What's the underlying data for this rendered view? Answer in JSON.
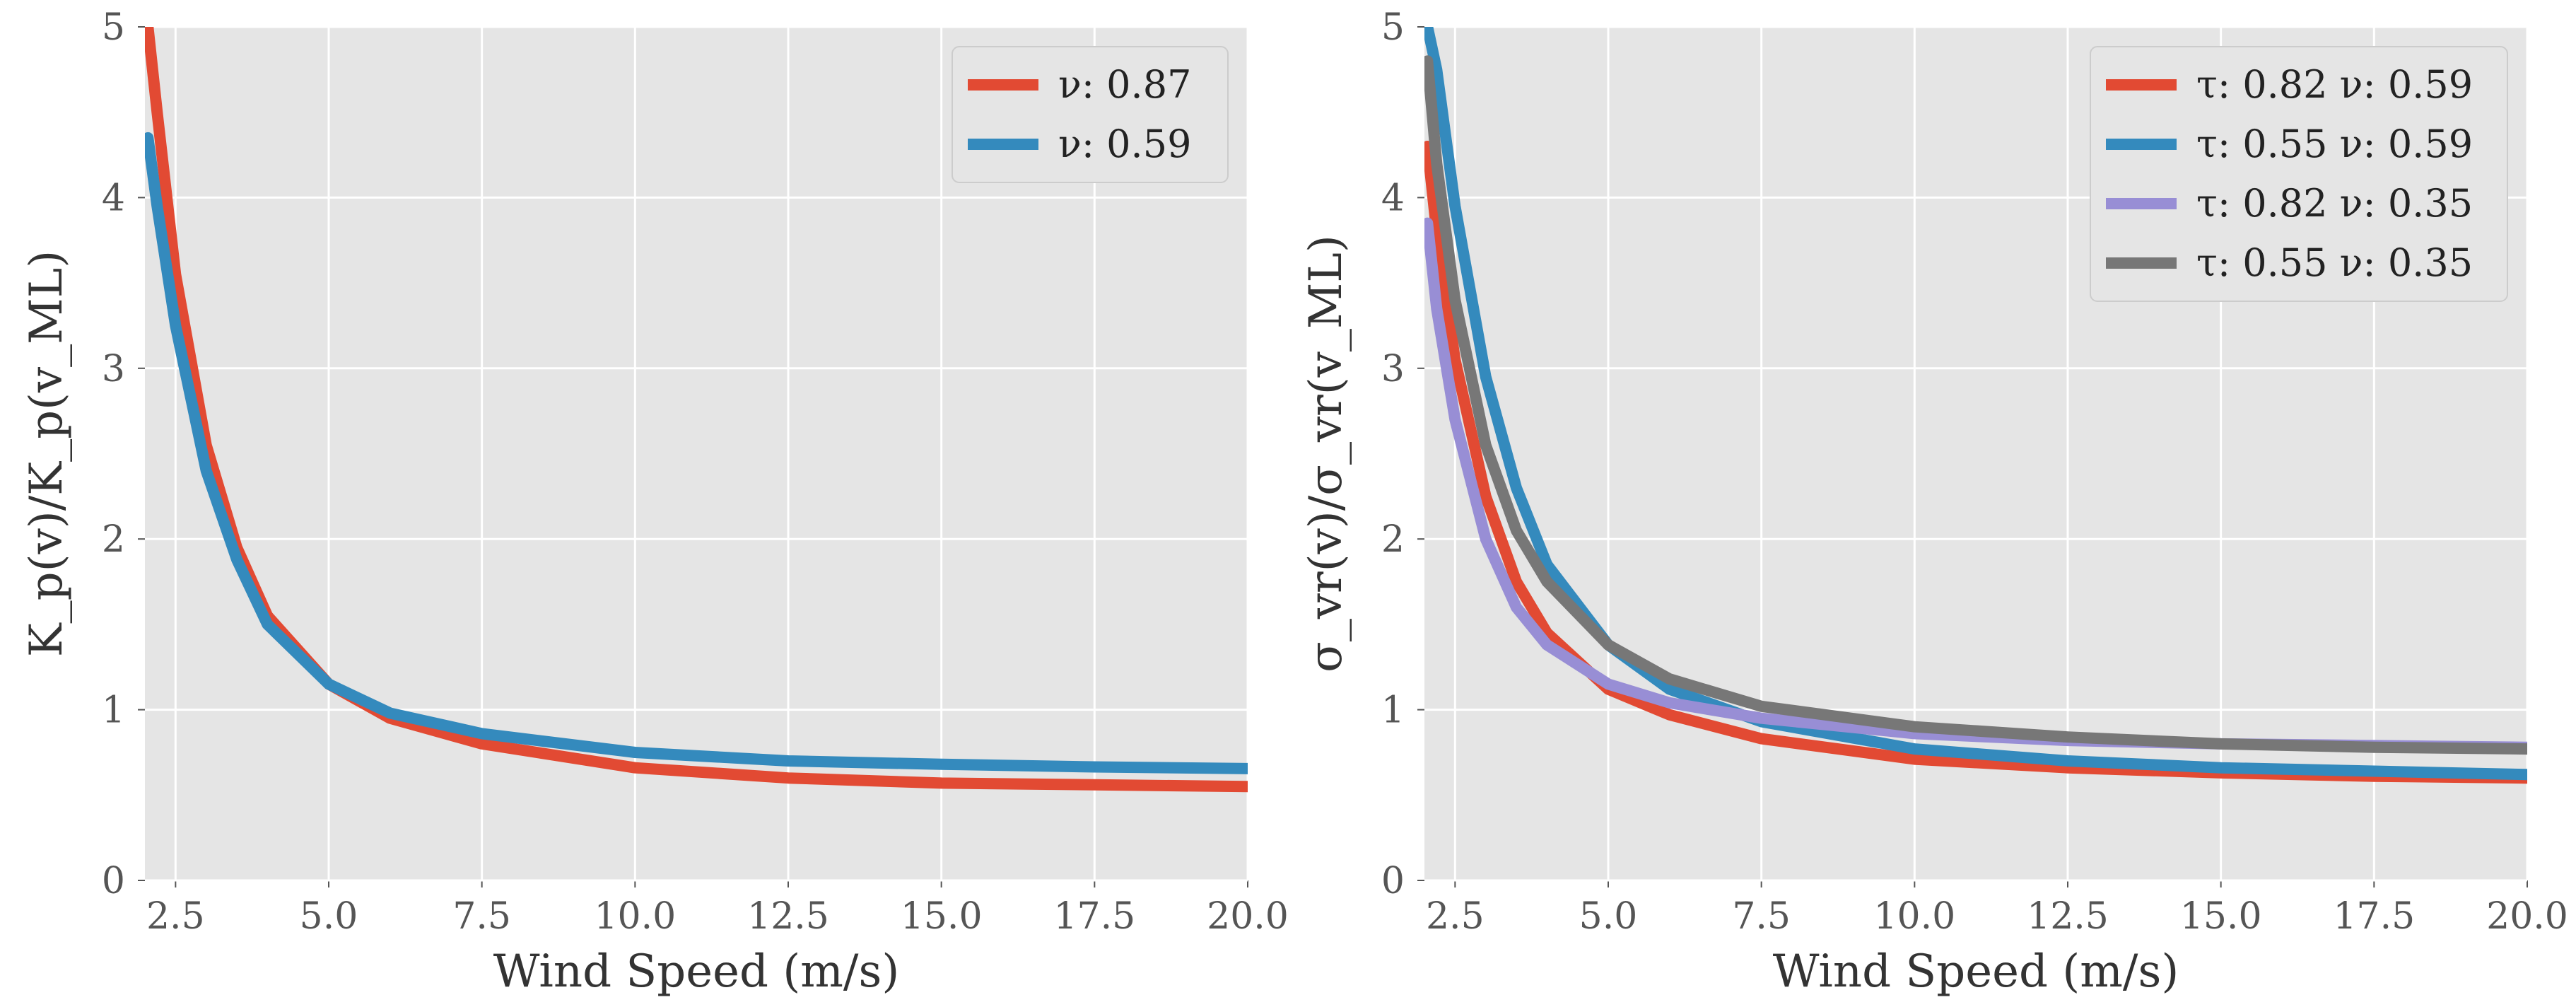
{
  "figure": {
    "background": "#ffffff",
    "panel_background": "#E5E5E5",
    "grid_color": "#ffffff"
  },
  "chart_data": [
    {
      "type": "line",
      "title": "",
      "xlabel": "Wind Speed (m/s)",
      "ylabel": "K_p(v)/K_p(v_ML)",
      "xlim": [
        2.0,
        20.0
      ],
      "ylim": [
        0,
        5
      ],
      "xticks": [
        "2.5",
        "5.0",
        "7.5",
        "10.0",
        "12.5",
        "15.0",
        "17.5",
        "20.0"
      ],
      "yticks": [
        "0",
        "1",
        "2",
        "3",
        "4",
        "5"
      ],
      "grid": true,
      "legend_position": "top-right",
      "series": [
        {
          "name": "ν: 0.87",
          "color": "#E24A33",
          "x": [
            2.05,
            2.2,
            2.5,
            3.0,
            3.5,
            4.0,
            5.0,
            6.0,
            7.5,
            10.0,
            12.5,
            15.0,
            17.5,
            20.0
          ],
          "y": [
            5.0,
            4.5,
            3.55,
            2.55,
            1.95,
            1.55,
            1.15,
            0.95,
            0.8,
            0.66,
            0.6,
            0.57,
            0.56,
            0.55
          ]
        },
        {
          "name": "ν: 0.59",
          "color": "#348ABD",
          "x": [
            2.05,
            2.2,
            2.5,
            3.0,
            3.5,
            4.0,
            5.0,
            6.0,
            7.5,
            10.0,
            12.5,
            15.0,
            17.5,
            20.0
          ],
          "y": [
            4.35,
            3.95,
            3.25,
            2.4,
            1.88,
            1.5,
            1.15,
            0.98,
            0.86,
            0.75,
            0.7,
            0.68,
            0.665,
            0.655
          ]
        }
      ]
    },
    {
      "type": "line",
      "title": "",
      "xlabel": "Wind Speed (m/s)",
      "ylabel": "σ_vr(v)/σ_vr(v_ML)",
      "xlim": [
        2.0,
        20.0
      ],
      "ylim": [
        0,
        5
      ],
      "xticks": [
        "2.5",
        "5.0",
        "7.5",
        "10.0",
        "12.5",
        "15.0",
        "17.5",
        "20.0"
      ],
      "yticks": [
        "0",
        "1",
        "2",
        "3",
        "4",
        "5"
      ],
      "grid": true,
      "legend_position": "top-right",
      "series": [
        {
          "name": "τ: 0.82 ν: 0.59",
          "color": "#E24A33",
          "x": [
            2.05,
            2.2,
            2.5,
            3.0,
            3.5,
            4.0,
            5.0,
            6.0,
            7.5,
            10.0,
            12.5,
            15.0,
            17.5,
            20.0
          ],
          "y": [
            4.3,
            3.8,
            3.05,
            2.25,
            1.75,
            1.45,
            1.12,
            0.97,
            0.83,
            0.71,
            0.66,
            0.63,
            0.61,
            0.6
          ]
        },
        {
          "name": "τ: 0.55 ν: 0.59",
          "color": "#348ABD",
          "x": [
            2.05,
            2.2,
            2.5,
            3.0,
            3.5,
            4.0,
            5.0,
            6.0,
            7.5,
            10.0,
            12.5,
            15.0,
            17.5,
            20.0
          ],
          "y": [
            5.0,
            4.75,
            3.95,
            2.95,
            2.3,
            1.85,
            1.38,
            1.12,
            0.93,
            0.77,
            0.7,
            0.66,
            0.64,
            0.62
          ]
        },
        {
          "name": "τ: 0.82 ν: 0.35",
          "color": "#988ED5",
          "x": [
            2.05,
            2.2,
            2.5,
            3.0,
            3.5,
            4.0,
            5.0,
            6.0,
            7.5,
            10.0,
            12.5,
            15.0,
            17.5,
            20.0
          ],
          "y": [
            3.85,
            3.35,
            2.7,
            2.0,
            1.6,
            1.38,
            1.15,
            1.04,
            0.95,
            0.86,
            0.82,
            0.8,
            0.79,
            0.78
          ]
        },
        {
          "name": "τ: 0.55 ν: 0.35",
          "color": "#777777",
          "x": [
            2.05,
            2.2,
            2.5,
            3.0,
            3.5,
            4.0,
            5.0,
            6.0,
            7.5,
            10.0,
            12.5,
            15.0,
            17.5,
            20.0
          ],
          "y": [
            4.8,
            4.2,
            3.4,
            2.55,
            2.05,
            1.75,
            1.38,
            1.18,
            1.02,
            0.9,
            0.84,
            0.8,
            0.78,
            0.77
          ]
        }
      ]
    }
  ]
}
